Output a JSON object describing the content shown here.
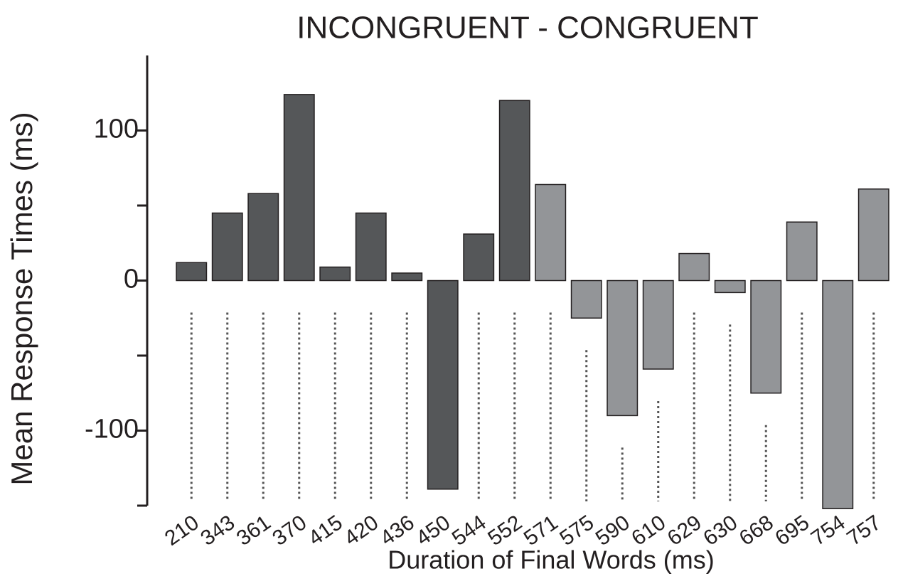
{
  "chart_data": {
    "type": "bar",
    "title": "INCONGRUENT - CONGRUENT",
    "x_label": "Duration of Final Words (ms)",
    "y_label": "Mean Response Times (ms)",
    "categories": [
      "210",
      "343",
      "361",
      "370",
      "415",
      "420",
      "436",
      "450",
      "544",
      "552",
      "571",
      "575",
      "590",
      "610",
      "629",
      "630",
      "668",
      "695",
      "754",
      "757"
    ],
    "values": [
      12,
      45,
      58,
      124,
      9,
      45,
      5,
      -139,
      31,
      120,
      64,
      -25,
      -90,
      -59,
      18,
      -8,
      -75,
      39,
      -152,
      61
    ],
    "colors": [
      "#555759",
      "#555759",
      "#555759",
      "#555759",
      "#555759",
      "#555759",
      "#555759",
      "#555759",
      "#555759",
      "#555759",
      "#939598",
      "#939598",
      "#939598",
      "#939598",
      "#939598",
      "#939598",
      "#939598",
      "#939598",
      "#939598",
      "#939598"
    ],
    "ylim": [
      -150,
      150
    ],
    "yticks": [
      -100,
      0,
      100
    ],
    "yminor_ticks": [
      -150,
      -50,
      50
    ],
    "grid": false
  }
}
